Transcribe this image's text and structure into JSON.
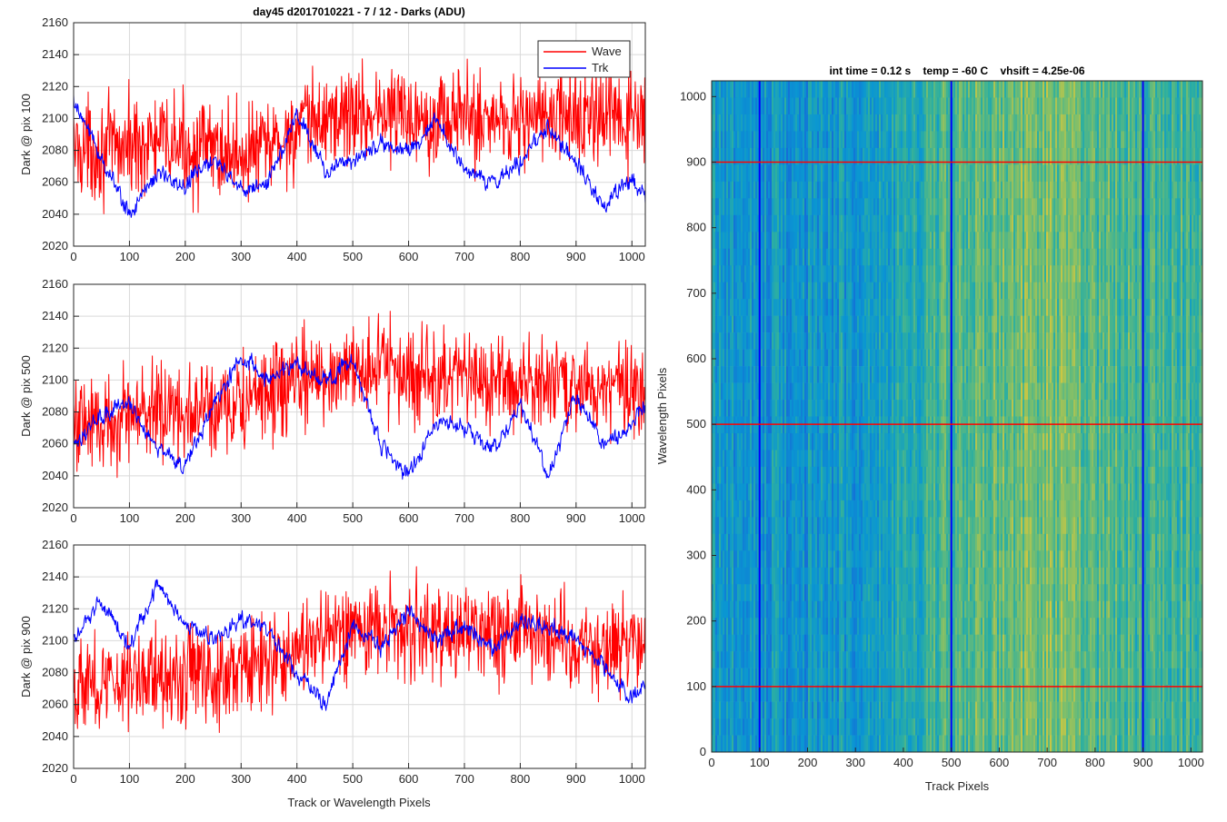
{
  "chart_data": [
    {
      "type": "line",
      "id": "dark_pix_100",
      "title": "day45 d2017010221 - 7 / 12 - Darks (ADU)",
      "xlabel": "",
      "ylabel": "Dark @ pix 100",
      "xlim": [
        0,
        1024
      ],
      "ylim": [
        2020,
        2160
      ],
      "xticks": [
        0,
        100,
        200,
        300,
        400,
        500,
        600,
        700,
        800,
        900,
        1000
      ],
      "yticks": [
        2020,
        2040,
        2060,
        2080,
        2100,
        2120,
        2140,
        2160
      ],
      "grid": true,
      "legend": "top-right",
      "series": [
        {
          "name": "Wave",
          "color": "#ff0000",
          "x": [
            0,
            50,
            100,
            150,
            200,
            250,
            300,
            350,
            400,
            450,
            500,
            550,
            600,
            650,
            700,
            750,
            800,
            850,
            900,
            950,
            1000,
            1024
          ],
          "values": [
            2082,
            2080,
            2083,
            2085,
            2082,
            2080,
            2078,
            2082,
            2092,
            2100,
            2103,
            2104,
            2103,
            2102,
            2101,
            2100,
            2101,
            2100,
            2101,
            2100,
            2098,
            2096
          ]
        },
        {
          "name": "Trk",
          "color": "#0000ff",
          "x": [
            0,
            50,
            100,
            150,
            200,
            250,
            300,
            350,
            400,
            450,
            500,
            550,
            600,
            650,
            700,
            750,
            800,
            850,
            900,
            950,
            1000,
            1024
          ],
          "values": [
            2112,
            2075,
            2040,
            2065,
            2058,
            2075,
            2055,
            2060,
            2105,
            2068,
            2073,
            2085,
            2078,
            2100,
            2068,
            2060,
            2072,
            2095,
            2072,
            2045,
            2062,
            2048
          ]
        }
      ]
    },
    {
      "type": "line",
      "id": "dark_pix_500",
      "title": "",
      "xlabel": "",
      "ylabel": "Dark @ pix 500",
      "xlim": [
        0,
        1024
      ],
      "ylim": [
        2020,
        2160
      ],
      "xticks": [
        0,
        100,
        200,
        300,
        400,
        500,
        600,
        700,
        800,
        900,
        1000
      ],
      "yticks": [
        2020,
        2040,
        2060,
        2080,
        2100,
        2120,
        2140,
        2160
      ],
      "grid": true,
      "series": [
        {
          "name": "Wave",
          "color": "#ff0000",
          "x": [
            0,
            50,
            100,
            150,
            200,
            250,
            300,
            350,
            400,
            450,
            500,
            550,
            600,
            650,
            700,
            750,
            800,
            850,
            900,
            950,
            1000,
            1024
          ],
          "values": [
            2075,
            2073,
            2078,
            2082,
            2080,
            2082,
            2085,
            2090,
            2098,
            2102,
            2110,
            2108,
            2104,
            2100,
            2098,
            2100,
            2098,
            2097,
            2096,
            2098,
            2098,
            2096
          ]
        },
        {
          "name": "Trk",
          "color": "#0000ff",
          "x": [
            0,
            50,
            100,
            150,
            200,
            250,
            300,
            350,
            400,
            450,
            500,
            550,
            600,
            650,
            700,
            750,
            800,
            850,
            900,
            950,
            1000,
            1024
          ],
          "values": [
            2060,
            2078,
            2085,
            2058,
            2045,
            2085,
            2115,
            2100,
            2110,
            2100,
            2112,
            2060,
            2040,
            2075,
            2070,
            2055,
            2085,
            2040,
            2090,
            2060,
            2070,
            2085
          ]
        }
      ]
    },
    {
      "type": "line",
      "id": "dark_pix_900",
      "title": "",
      "xlabel": "Track or Wavelength Pixels",
      "ylabel": "Dark @ pix 900",
      "xlim": [
        0,
        1024
      ],
      "ylim": [
        2020,
        2160
      ],
      "xticks": [
        0,
        100,
        200,
        300,
        400,
        500,
        600,
        700,
        800,
        900,
        1000
      ],
      "yticks": [
        2020,
        2040,
        2060,
        2080,
        2100,
        2120,
        2140,
        2160
      ],
      "grid": true,
      "series": [
        {
          "name": "Wave",
          "color": "#ff0000",
          "x": [
            0,
            50,
            100,
            150,
            200,
            250,
            300,
            350,
            400,
            450,
            500,
            550,
            600,
            650,
            700,
            750,
            800,
            850,
            900,
            950,
            1000,
            1024
          ],
          "values": [
            2075,
            2072,
            2078,
            2080,
            2078,
            2080,
            2082,
            2085,
            2095,
            2102,
            2108,
            2108,
            2106,
            2105,
            2106,
            2107,
            2106,
            2106,
            2100,
            2096,
            2098,
            2100
          ]
        },
        {
          "name": "Trk",
          "color": "#0000ff",
          "x": [
            0,
            50,
            100,
            150,
            200,
            250,
            300,
            350,
            400,
            450,
            500,
            550,
            600,
            650,
            700,
            750,
            800,
            850,
            900,
            950,
            1000,
            1024
          ],
          "values": [
            2100,
            2125,
            2095,
            2135,
            2110,
            2100,
            2115,
            2105,
            2080,
            2060,
            2110,
            2095,
            2120,
            2100,
            2110,
            2095,
            2112,
            2110,
            2100,
            2085,
            2065,
            2070
          ]
        }
      ]
    },
    {
      "type": "heatmap",
      "id": "dark_image",
      "title": "int time = 0.12 s    temp = -60 C    vhsift = 4.25e-06",
      "xlabel": "Track Pixels",
      "ylabel": "Wavelength Pixels",
      "xlim": [
        0,
        1024
      ],
      "ylim": [
        0,
        1024
      ],
      "xticks": [
        0,
        100,
        200,
        300,
        400,
        500,
        600,
        700,
        800,
        900,
        1000
      ],
      "yticks": [
        0,
        100,
        200,
        300,
        400,
        500,
        600,
        700,
        800,
        900,
        1000
      ],
      "colormap": "parula",
      "colors": {
        "low": "#0c8dd8",
        "mid": "#3aab9a",
        "high": "#c9c43f"
      },
      "column_profile": {
        "x": [
          0,
          100,
          200,
          300,
          400,
          500,
          600,
          700,
          800,
          900,
          1000,
          1024
        ],
        "relative_level": [
          0.3,
          0.28,
          0.25,
          0.3,
          0.38,
          0.62,
          0.66,
          0.72,
          0.62,
          0.58,
          0.55,
          0.55
        ]
      },
      "markers": {
        "vertical_lines": {
          "x": [
            100,
            500,
            900
          ],
          "color": "#0000ff"
        },
        "horizontal_lines": {
          "y": [
            100,
            500,
            900
          ],
          "color": "#ff0000"
        }
      }
    }
  ]
}
